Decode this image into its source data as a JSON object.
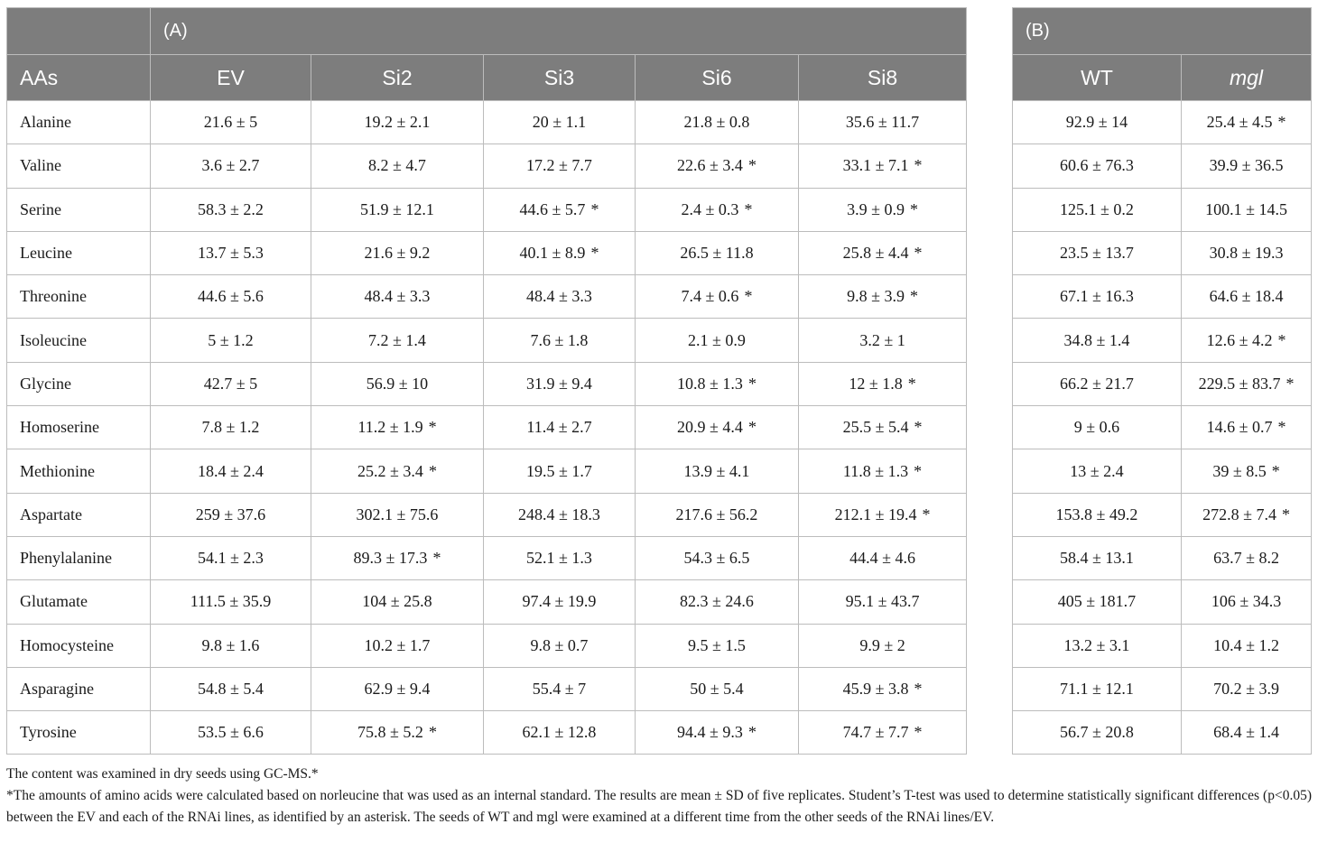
{
  "panel_a": {
    "label": "(A)",
    "headers": [
      "AAs",
      "EV",
      "Si2",
      "Si3",
      "Si6",
      "Si8"
    ],
    "rows": [
      {
        "aa": "Alanine",
        "cells": [
          {
            "v": "21.6 ± 5"
          },
          {
            "v": "19.2 ± 2.1"
          },
          {
            "v": "20 ± 1.1"
          },
          {
            "v": "21.8 ± 0.8"
          },
          {
            "v": "35.6 ± 11.7"
          }
        ]
      },
      {
        "aa": "Valine",
        "cells": [
          {
            "v": "3.6 ± 2.7"
          },
          {
            "v": "8.2 ± 4.7"
          },
          {
            "v": "17.2 ± 7.7"
          },
          {
            "v": "22.6 ± 3.4",
            "s": "*"
          },
          {
            "v": "33.1 ± 7.1",
            "s": "*"
          }
        ]
      },
      {
        "aa": "Serine",
        "cells": [
          {
            "v": "58.3 ± 2.2"
          },
          {
            "v": "51.9 ± 12.1"
          },
          {
            "v": "44.6 ± 5.7",
            "s": "*"
          },
          {
            "v": "2.4 ± 0.3",
            "s": "*"
          },
          {
            "v": "3.9 ± 0.9",
            "s": "*"
          }
        ]
      },
      {
        "aa": "Leucine",
        "cells": [
          {
            "v": "13.7 ± 5.3"
          },
          {
            "v": "21.6 ± 9.2"
          },
          {
            "v": "40.1 ± 8.9",
            "s": "*"
          },
          {
            "v": "26.5 ± 11.8"
          },
          {
            "v": "25.8 ± 4.4",
            "s": "*"
          }
        ]
      },
      {
        "aa": "Threonine",
        "cells": [
          {
            "v": "44.6 ± 5.6"
          },
          {
            "v": "48.4 ± 3.3"
          },
          {
            "v": "48.4 ± 3.3"
          },
          {
            "v": "7.4 ± 0.6",
            "s": "*"
          },
          {
            "v": "9.8 ± 3.9",
            "s": "*"
          }
        ]
      },
      {
        "aa": "Isoleucine",
        "cells": [
          {
            "v": "5 ± 1.2"
          },
          {
            "v": "7.2 ± 1.4"
          },
          {
            "v": "7.6 ± 1.8"
          },
          {
            "v": "2.1 ± 0.9"
          },
          {
            "v": "3.2 ± 1"
          }
        ]
      },
      {
        "aa": "Glycine",
        "cells": [
          {
            "v": "42.7 ± 5"
          },
          {
            "v": "56.9 ± 10"
          },
          {
            "v": "31.9 ± 9.4"
          },
          {
            "v": "10.8 ± 1.3",
            "s": "*"
          },
          {
            "v": "12 ± 1.8",
            "s": "*"
          }
        ]
      },
      {
        "aa": "Homoserine",
        "cells": [
          {
            "v": "7.8 ± 1.2"
          },
          {
            "v": "11.2 ± 1.9",
            "s": "*"
          },
          {
            "v": "11.4 ± 2.7"
          },
          {
            "v": "20.9 ± 4.4",
            "s": "*"
          },
          {
            "v": "25.5 ± 5.4",
            "s": "*"
          }
        ]
      },
      {
        "aa": "Methionine",
        "cells": [
          {
            "v": "18.4 ± 2.4"
          },
          {
            "v": "25.2 ± 3.4",
            "s": "*"
          },
          {
            "v": "19.5 ± 1.7"
          },
          {
            "v": "13.9 ± 4.1"
          },
          {
            "v": "11.8 ± 1.3",
            "s": "*"
          }
        ]
      },
      {
        "aa": "Aspartate",
        "cells": [
          {
            "v": "259 ± 37.6"
          },
          {
            "v": "302.1 ± 75.6"
          },
          {
            "v": "248.4 ± 18.3"
          },
          {
            "v": "217.6 ± 56.2"
          },
          {
            "v": "212.1 ± 19.4",
            "s": "*"
          }
        ]
      },
      {
        "aa": "Phenylalanine",
        "cells": [
          {
            "v": "54.1 ± 2.3"
          },
          {
            "v": "89.3 ± 17.3",
            "s": "*"
          },
          {
            "v": "52.1 ± 1.3"
          },
          {
            "v": "54.3 ± 6.5"
          },
          {
            "v": "44.4 ± 4.6"
          }
        ]
      },
      {
        "aa": "Glutamate",
        "cells": [
          {
            "v": "111.5 ± 35.9"
          },
          {
            "v": "104 ± 25.8"
          },
          {
            "v": "97.4 ± 19.9"
          },
          {
            "v": "82.3 ± 24.6"
          },
          {
            "v": "95.1 ± 43.7"
          }
        ]
      },
      {
        "aa": "Homocysteine",
        "cells": [
          {
            "v": "9.8 ± 1.6"
          },
          {
            "v": "10.2 ± 1.7"
          },
          {
            "v": "9.8 ± 0.7"
          },
          {
            "v": "9.5 ± 1.5"
          },
          {
            "v": "9.9 ± 2"
          }
        ]
      },
      {
        "aa": "Asparagine",
        "cells": [
          {
            "v": "54.8 ± 5.4"
          },
          {
            "v": "62.9 ± 9.4"
          },
          {
            "v": "55.4 ± 7"
          },
          {
            "v": "50 ± 5.4"
          },
          {
            "v": "45.9 ± 3.8",
            "s": "*"
          }
        ]
      },
      {
        "aa": "Tyrosine",
        "cells": [
          {
            "v": "53.5 ± 6.6"
          },
          {
            "v": "75.8 ± 5.2",
            "s": "*"
          },
          {
            "v": "62.1 ± 12.8"
          },
          {
            "v": "94.4 ± 9.3",
            "s": "*"
          },
          {
            "v": "74.7 ± 7.7",
            "s": "*"
          }
        ]
      }
    ]
  },
  "panel_b": {
    "label": "(B)",
    "headers": [
      "WT",
      "mgl"
    ],
    "rows": [
      {
        "cells": [
          {
            "v": "92.9 ± 14"
          },
          {
            "v": "25.4 ± 4.5",
            "s": "*"
          }
        ]
      },
      {
        "cells": [
          {
            "v": "60.6 ± 76.3"
          },
          {
            "v": "39.9 ± 36.5"
          }
        ]
      },
      {
        "cells": [
          {
            "v": "125.1 ± 0.2"
          },
          {
            "v": "100.1 ± 14.5"
          }
        ]
      },
      {
        "cells": [
          {
            "v": "23.5 ± 13.7"
          },
          {
            "v": "30.8 ± 19.3"
          }
        ]
      },
      {
        "cells": [
          {
            "v": "67.1 ± 16.3"
          },
          {
            "v": "64.6 ± 18.4"
          }
        ]
      },
      {
        "cells": [
          {
            "v": "34.8 ± 1.4"
          },
          {
            "v": "12.6 ± 4.2",
            "s": "*"
          }
        ]
      },
      {
        "cells": [
          {
            "v": "66.2 ± 21.7"
          },
          {
            "v": "229.5 ± 83.7",
            "s": "*"
          }
        ]
      },
      {
        "cells": [
          {
            "v": "9 ± 0.6"
          },
          {
            "v": "14.6 ± 0.7",
            "s": "*"
          }
        ]
      },
      {
        "cells": [
          {
            "v": "13 ± 2.4"
          },
          {
            "v": "39 ± 8.5",
            "s": "*"
          }
        ]
      },
      {
        "cells": [
          {
            "v": "153.8 ± 49.2"
          },
          {
            "v": "272.8 ± 7.4",
            "s": "*"
          }
        ]
      },
      {
        "cells": [
          {
            "v": "58.4 ± 13.1"
          },
          {
            "v": "63.7 ± 8.2"
          }
        ]
      },
      {
        "cells": [
          {
            "v": "405 ± 181.7"
          },
          {
            "v": "106 ± 34.3"
          }
        ]
      },
      {
        "cells": [
          {
            "v": "13.2 ± 3.1"
          },
          {
            "v": "10.4 ± 1.2"
          }
        ]
      },
      {
        "cells": [
          {
            "v": "71.1 ± 12.1"
          },
          {
            "v": "70.2 ± 3.9"
          }
        ]
      },
      {
        "cells": [
          {
            "v": "56.7 ± 20.8"
          },
          {
            "v": "68.4 ± 1.4"
          }
        ]
      }
    ]
  },
  "notes": {
    "line1": "The content was examined in dry seeds using GC-MS.*",
    "line2": "*The amounts of amino acids were calculated based on norleucine that was used as an internal standard. The results are mean ±  SD of five replicates. Student’s T-test was used to determine statistically significant differences (p<0.05) between the EV and each of the RNAi lines, as identified by an asterisk. The seeds of WT and mgl were examined at a different time from the other seeds of the RNAi lines/EV."
  }
}
